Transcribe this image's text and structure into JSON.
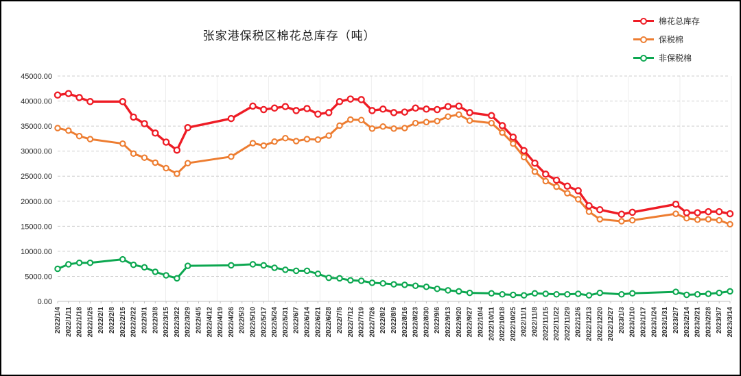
{
  "window": {
    "title": "张家港保税区棉花总库存（吨）"
  },
  "chart_data": {
    "type": "line",
    "title": "张家港保税区棉花总库存（吨）",
    "xlabel": "",
    "ylabel": "",
    "ylim": [
      0,
      45000
    ],
    "y_tick_step": 5000,
    "y_ticks": [
      "45000.00",
      "40000.00",
      "35000.00",
      "30000.00",
      "25000.00",
      "20000.00",
      "15000.00",
      "10000.00",
      "5000.00",
      "0.00"
    ],
    "grid": "horizontal-dashed",
    "legend_position": "top-right",
    "marker": "open-circle",
    "categories": [
      "2022/1/4",
      "2022/1/11",
      "2022/1/18",
      "2022/1/25",
      "2022/2/1",
      "2022/2/8",
      "2022/2/15",
      "2022/2/22",
      "2022/3/1",
      "2022/3/8",
      "2022/3/15",
      "2022/3/22",
      "2022/3/29",
      "2022/4/5",
      "2022/4/12",
      "2022/4/19",
      "2022/4/26",
      "2022/5/3",
      "2022/5/10",
      "2022/5/17",
      "2022/5/24",
      "2022/5/31",
      "2022/6/7",
      "2022/6/14",
      "2022/6/21",
      "2022/6/28",
      "2022/7/5",
      "2022/7/12",
      "2022/7/19",
      "2022/7/26",
      "2022/8/2",
      "2022/8/9",
      "2022/8/16",
      "2022/8/23",
      "2022/8/30",
      "2022/9/6",
      "2022/9/13",
      "2022/9/20",
      "2022/9/27",
      "2022/10/4",
      "2022/10/11",
      "2022/10/18",
      "2022/10/25",
      "2022/11/1",
      "2022/11/8",
      "2022/11/15",
      "2022/11/22",
      "2022/11/29",
      "2022/12/6",
      "2022/12/13",
      "2022/12/20",
      "2022/12/27",
      "2023/1/3",
      "2023/1/10",
      "2023/1/17",
      "2023/1/24",
      "2023/1/31",
      "2023/2/7",
      "2023/2/14",
      "2023/2/21",
      "2023/2/28",
      "2023/3/7",
      "2023/3/14"
    ],
    "series": [
      {
        "name": "棉花总库存",
        "color": "#ee1c25",
        "line_width": 3.4,
        "values": [
          41200,
          41500,
          40700,
          39900,
          null,
          null,
          39900,
          36800,
          35500,
          33600,
          31800,
          30200,
          34700,
          null,
          null,
          null,
          36500,
          null,
          39000,
          38300,
          38600,
          38900,
          38100,
          38500,
          37400,
          37700,
          39900,
          40400,
          40300,
          38100,
          38400,
          37700,
          37800,
          38600,
          38400,
          38300,
          38900,
          39000,
          37700,
          null,
          37100,
          35100,
          32800,
          30100,
          27600,
          25400,
          24200,
          23000,
          22100,
          19100,
          18300,
          null,
          17400,
          17800,
          null,
          null,
          null,
          19400,
          17700,
          17700,
          17900,
          17900,
          17500
        ]
      },
      {
        "name": "保税棉",
        "color": "#ed7d31",
        "line_width": 3,
        "values": [
          34600,
          34100,
          33000,
          32400,
          null,
          null,
          31500,
          29500,
          28700,
          27700,
          26600,
          25500,
          27600,
          null,
          null,
          null,
          28900,
          null,
          31600,
          31100,
          31900,
          32600,
          32000,
          32400,
          32300,
          33100,
          35100,
          36300,
          36200,
          34500,
          34900,
          34500,
          34600,
          35600,
          35800,
          36000,
          36900,
          37300,
          36100,
          null,
          35600,
          33700,
          31500,
          28800,
          25900,
          24000,
          22900,
          21600,
          20400,
          17900,
          16400,
          null,
          16000,
          16200,
          null,
          null,
          null,
          17500,
          16600,
          16300,
          16400,
          16200,
          15400
        ]
      },
      {
        "name": "非保税棉",
        "color": "#0ca750",
        "line_width": 3,
        "values": [
          6500,
          7400,
          7700,
          7700,
          null,
          null,
          8400,
          7300,
          6800,
          5900,
          5200,
          4600,
          7100,
          null,
          null,
          null,
          7200,
          null,
          7400,
          7200,
          6700,
          6300,
          6100,
          6100,
          5500,
          4700,
          4600,
          4200,
          4100,
          3700,
          3600,
          3400,
          3300,
          3100,
          2900,
          2500,
          2200,
          2000,
          1700,
          null,
          1600,
          1400,
          1300,
          1200,
          1600,
          1500,
          1400,
          1400,
          1500,
          1200,
          1700,
          null,
          1400,
          1600,
          null,
          null,
          null,
          1900,
          1300,
          1400,
          1500,
          1700,
          2000
        ]
      }
    ]
  }
}
